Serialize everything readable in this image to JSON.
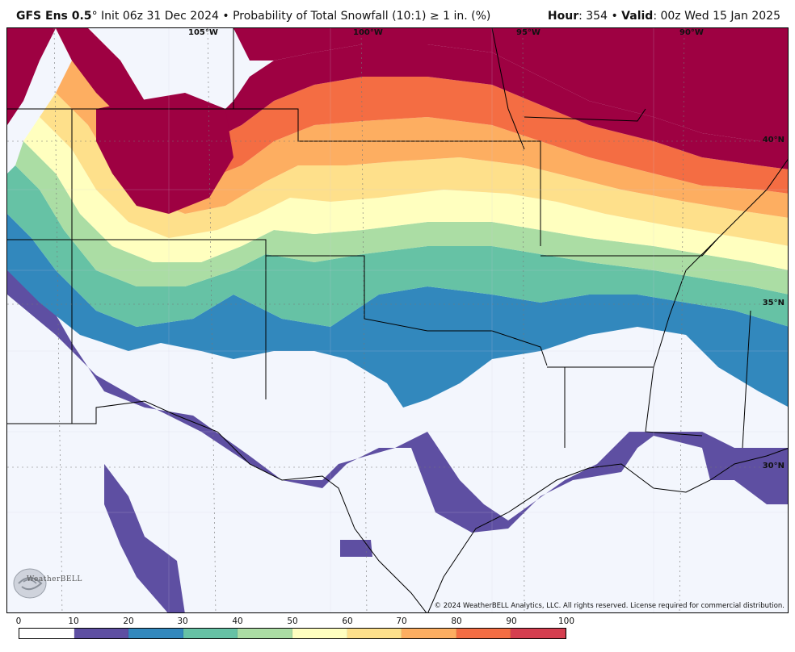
{
  "header": {
    "model": "GFS Ens 0.5",
    "degree": "°",
    "init": " Init 06z 31 Dec 2024",
    "sep1": " • ",
    "product": "Probability of Total Snowfall (10:1) ≥ 1 in. (%)",
    "hour_label": "Hour",
    "hour_value": ": 354",
    "sep2": " • ",
    "valid_label": "Valid",
    "valid_value": ": 00z Wed 15 Jan 2025"
  },
  "map": {
    "longitude_labels": [
      "105°W",
      "100°W",
      "95°W",
      "90°W"
    ],
    "latitude_labels": [
      "40°N",
      "35°N",
      "30°N"
    ],
    "copyright": "© 2024 WeatherBELL Analytics, LLC. All rights reserved. License required for commercial distribution.",
    "logo_text": "WeatherBELL",
    "logo_icon": "weatherbell-swirl-icon"
  },
  "legend": {
    "ticks": [
      "0",
      "10",
      "20",
      "30",
      "40",
      "50",
      "60",
      "70",
      "80",
      "90",
      "100"
    ],
    "colors": [
      "#ffffff",
      "#5e4fa2",
      "#3288bd",
      "#66c2a5",
      "#abdda4",
      "#ffffbf",
      "#fee08b",
      "#fdae61",
      "#f46d43",
      "#d53e4f",
      "#9e0142"
    ]
  }
}
